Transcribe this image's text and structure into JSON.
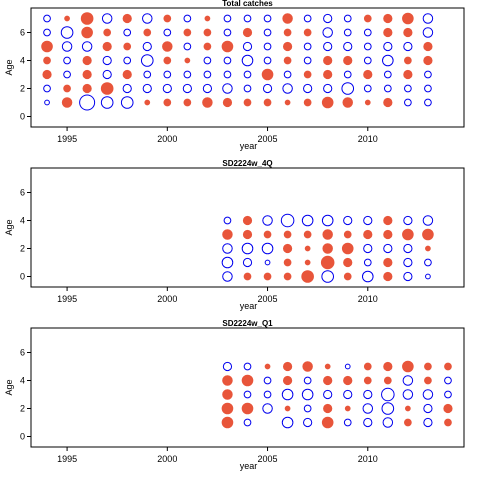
{
  "colors": {
    "positive": "#e8553a",
    "negative": "#0000ee",
    "axis": "#000000"
  },
  "chart_data": [
    {
      "type": "bubble",
      "title": "Total catches",
      "xlabel": "year",
      "ylabel": "Age",
      "xlim": [
        1993.2,
        2014.8
      ],
      "ylim": [
        -0.75,
        7.75
      ],
      "xticks": [
        1995,
        2000,
        2005,
        2010
      ],
      "yticks": [
        0,
        2,
        4,
        6
      ],
      "years": [
        1994,
        1995,
        1996,
        1997,
        1998,
        1999,
        2000,
        2001,
        2002,
        2003,
        2004,
        2005,
        2006,
        2007,
        2008,
        2009,
        2010,
        2011,
        2012,
        2013
      ],
      "ages": [
        1,
        2,
        3,
        4,
        5,
        6,
        7
      ],
      "sign_note": "positive = filled red, negative = open blue",
      "residuals": [
        [
          -0.1,
          0.4,
          -1.0,
          -0.6,
          -0.6,
          0.1,
          0.2,
          0.2,
          0.4,
          0.3,
          0.2,
          0.2,
          0.1,
          0.2,
          0.5,
          0.4,
          0.1,
          0.3,
          -0.2,
          -0.2
        ],
        [
          -0.2,
          0.2,
          0.3,
          0.6,
          -0.3,
          -0.3,
          -0.3,
          -0.3,
          -0.3,
          -0.4,
          -0.2,
          -0.3,
          -0.4,
          -0.3,
          -0.3,
          -0.6,
          -0.2,
          -0.2,
          -0.2,
          -0.2
        ],
        [
          0.3,
          -0.2,
          0.3,
          -0.3,
          0.3,
          -0.2,
          -0.2,
          -0.2,
          -0.2,
          -0.2,
          -0.2,
          0.5,
          -0.2,
          0.2,
          0.3,
          -0.2,
          0.3,
          -0.2,
          0.3,
          -0.2
        ],
        [
          0.2,
          -0.2,
          0.3,
          -0.3,
          -0.2,
          -0.6,
          0.2,
          0.1,
          -0.2,
          -0.2,
          -0.5,
          -0.2,
          0.2,
          -0.2,
          0.3,
          0.3,
          -0.2,
          -0.5,
          0.2,
          0.3
        ],
        [
          0.5,
          -0.4,
          -0.4,
          0.3,
          0.2,
          -0.3,
          0.4,
          -0.2,
          0.2,
          0.5,
          -0.3,
          -0.2,
          0.3,
          -0.2,
          -0.3,
          -0.3,
          -0.2,
          -0.3,
          -0.3,
          0.3
        ],
        [
          -0.2,
          -0.6,
          0.5,
          0.2,
          -0.2,
          0.2,
          -0.2,
          0.2,
          0.2,
          -0.2,
          0.3,
          -0.2,
          0.2,
          0.2,
          -0.4,
          -0.2,
          -0.2,
          0.3,
          0.3,
          -0.4
        ],
        [
          -0.2,
          0.1,
          0.6,
          -0.4,
          0.3,
          -0.4,
          0.2,
          -0.2,
          0.1,
          -0.2,
          -0.2,
          -0.2,
          0.4,
          -0.2,
          -0.3,
          -0.2,
          0.2,
          0.3,
          0.5,
          -0.4
        ]
      ]
    },
    {
      "type": "bubble",
      "title": "SD2224w_4Q",
      "xlabel": "year",
      "ylabel": "Age",
      "xlim": [
        1993.2,
        2014.8
      ],
      "ylim": [
        -0.75,
        7.75
      ],
      "xticks": [
        1995,
        2000,
        2005,
        2010
      ],
      "yticks": [
        0,
        2,
        4,
        6
      ],
      "years": [
        2003,
        2004,
        2005,
        2006,
        2007,
        2008,
        2009,
        2010,
        2011,
        2012,
        2013
      ],
      "ages": [
        0,
        1,
        2,
        3,
        4
      ],
      "residuals": [
        [
          -0.4,
          0.2,
          0.2,
          0.2,
          0.6,
          -0.6,
          0.2,
          -0.5,
          0.3,
          -0.3,
          -0.1
        ],
        [
          -0.5,
          -0.3,
          -0.1,
          0.2,
          0.1,
          0.7,
          0.3,
          -0.2,
          0.3,
          -0.3,
          -0.2
        ],
        [
          -0.4,
          -0.5,
          -0.5,
          0.3,
          0.1,
          0.4,
          0.5,
          -0.3,
          -0.3,
          -0.3,
          0.1
        ],
        [
          0.4,
          0.3,
          0.2,
          0.2,
          0.2,
          0.4,
          0.2,
          0.3,
          0.3,
          0.5,
          0.5
        ],
        [
          -0.2,
          0.3,
          -0.4,
          -0.7,
          -0.5,
          -0.5,
          -0.3,
          -0.3,
          0.3,
          -0.3,
          -0.4
        ]
      ]
    },
    {
      "type": "bubble",
      "title": "SD2224w_Q1",
      "xlabel": "year",
      "ylabel": "Age",
      "xlim": [
        1993.2,
        2014.8
      ],
      "ylim": [
        -0.75,
        7.75
      ],
      "xticks": [
        1995,
        2000,
        2005,
        2010
      ],
      "yticks": [
        0,
        2,
        4,
        6
      ],
      "years": [
        2003,
        2004,
        2005,
        2006,
        2007,
        2008,
        2009,
        2010,
        2011,
        2012,
        2013,
        2014
      ],
      "ages": [
        1,
        2,
        3,
        4,
        5
      ],
      "residuals": [
        [
          0.5,
          -0.2,
          0,
          -0.5,
          -0.3,
          0.5,
          -0.2,
          -0.3,
          -0.4,
          0.2,
          -0.3,
          0.2
        ],
        [
          0.5,
          0.5,
          -0.4,
          0.1,
          -0.2,
          0.3,
          0.1,
          -0.4,
          -0.6,
          0.1,
          -0.3,
          0.3
        ],
        [
          0.4,
          -0.2,
          -0.2,
          -0.5,
          -0.5,
          -0.3,
          -0.3,
          -0.3,
          -0.7,
          -0.4,
          -0.4,
          -0.2
        ],
        [
          0.4,
          0.5,
          -0.2,
          0.3,
          -0.2,
          0.3,
          0.3,
          0.2,
          0.2,
          -0.4,
          0.2,
          -0.2
        ],
        [
          -0.3,
          -0.2,
          0.1,
          0.3,
          0.4,
          0.1,
          -0.1,
          0.2,
          0.3,
          0.5,
          0.2,
          0.2
        ]
      ]
    }
  ]
}
